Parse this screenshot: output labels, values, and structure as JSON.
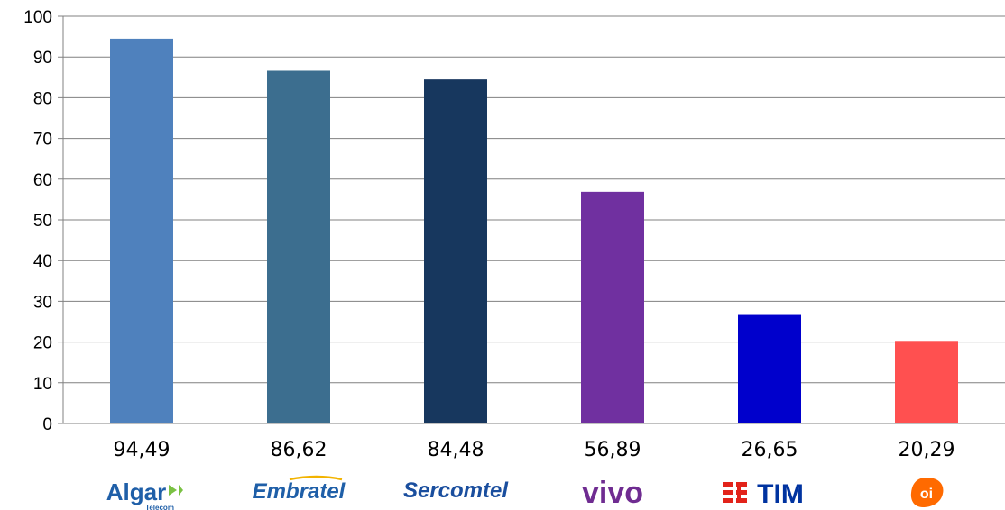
{
  "chart_data": {
    "type": "bar",
    "categories": [
      "Algar Telecom",
      "Embratel",
      "Sercomtel",
      "vivo",
      "TIM",
      "oi"
    ],
    "values": [
      94.49,
      86.62,
      84.48,
      56.89,
      26.65,
      20.29
    ],
    "data_labels": [
      "94,49",
      "86,62",
      "84,48",
      "56,89",
      "26,65",
      "20,29"
    ],
    "bar_colors": [
      "#4F81BD",
      "#3C6E8F",
      "#17375E",
      "#7030A0",
      "#0000CC",
      "#FF5050"
    ],
    "y_ticks": [
      "0",
      "10",
      "20",
      "30",
      "40",
      "50",
      "60",
      "70",
      "80",
      "90",
      "100"
    ],
    "ylim": [
      0,
      100
    ],
    "grid": true,
    "legend": "none"
  },
  "logos": [
    {
      "text": "Algar",
      "sub": "Telecom",
      "color": "#1F5FA8",
      "icon": "algar-chevron-icon"
    },
    {
      "text": "Embratel",
      "color": "#1F5FA8",
      "icon": "embratel-swoosh-icon"
    },
    {
      "text": "Sercomtel",
      "color": "#1A4E9E",
      "icon": ""
    },
    {
      "text": "vivo",
      "color": "#6F2C91",
      "icon": ""
    },
    {
      "text": "TIM",
      "color": "#0033A0",
      "icon": "tim-stripes-icon",
      "accent": "#E2231A"
    },
    {
      "text": "oi",
      "color": "#FF6A00",
      "icon": "oi-bubble-icon"
    }
  ]
}
